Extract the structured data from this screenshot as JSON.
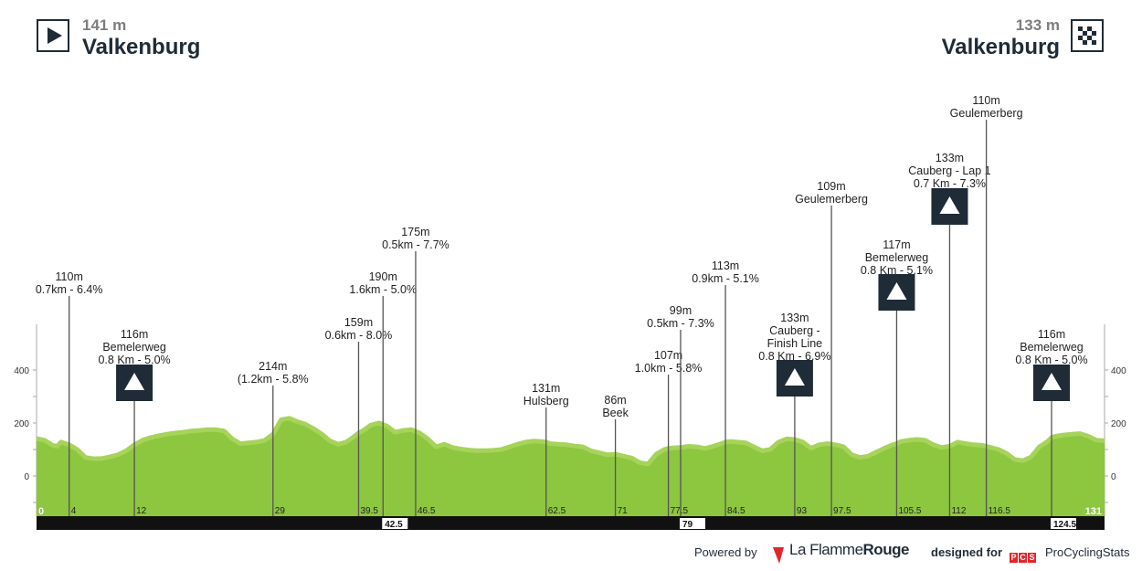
{
  "header": {
    "start": {
      "elevation": "141 m",
      "city": "Valkenburg",
      "icon": "play-start-icon"
    },
    "finish": {
      "elevation": "133 m",
      "city": "Valkenburg",
      "icon": "checkered-flag-icon"
    }
  },
  "chart_data": {
    "type": "area",
    "title": "",
    "xlabel": "",
    "ylabel": "",
    "xlim": [
      0,
      131
    ],
    "ylim": [
      -150,
      400
    ],
    "y_ticks": [
      0,
      200,
      400
    ],
    "grid": false,
    "colors": {
      "fill": "#8dc63f",
      "fill_light": "#a6d35a",
      "axis_bar": "#111111",
      "marker": "#1f2b36"
    },
    "profile": {
      "x": [
        0,
        1,
        2,
        2.5,
        3,
        4,
        5,
        6,
        7,
        8,
        9,
        10,
        11,
        12,
        13,
        14,
        15,
        16,
        17,
        18,
        19,
        20,
        21,
        22,
        23,
        24,
        25,
        26,
        27,
        28,
        29,
        30,
        31,
        32,
        33,
        34,
        35,
        36,
        37,
        38,
        39,
        39.5,
        40,
        41,
        42,
        43,
        44,
        45,
        46,
        46.5,
        47,
        48,
        49,
        50,
        51,
        52,
        53,
        54,
        55,
        56,
        57,
        58,
        59,
        60,
        61,
        62,
        62.5,
        63,
        64,
        65,
        66,
        67,
        68,
        69,
        70,
        71,
        72,
        73,
        74,
        75,
        76,
        77,
        77.5,
        78,
        79,
        80,
        81,
        82,
        83,
        84,
        84.5,
        85,
        86,
        87,
        88,
        89,
        90,
        91,
        92,
        93,
        94,
        95,
        96,
        97,
        97.5,
        98,
        99,
        100,
        101,
        102,
        103,
        104,
        105,
        105.5,
        106,
        107,
        108,
        109,
        110,
        111,
        112,
        113,
        114,
        115,
        116,
        116.5,
        117,
        118,
        119,
        120,
        121,
        122,
        123,
        124,
        124.5,
        125,
        126,
        127,
        128,
        129,
        130,
        131
      ],
      "y": [
        141,
        135,
        115,
        112,
        128,
        118,
        100,
        70,
        65,
        66,
        72,
        80,
        95,
        118,
        135,
        145,
        152,
        158,
        162,
        165,
        170,
        172,
        175,
        175,
        170,
        140,
        122,
        125,
        128,
        135,
        158,
        212,
        218,
        205,
        195,
        178,
        158,
        132,
        120,
        128,
        150,
        162,
        170,
        192,
        200,
        188,
        165,
        172,
        175,
        168,
        162,
        140,
        110,
        120,
        108,
        102,
        98,
        96,
        96,
        97,
        100,
        110,
        120,
        128,
        132,
        130,
        128,
        122,
        120,
        118,
        113,
        110,
        95,
        88,
        80,
        82,
        75,
        68,
        50,
        45,
        82,
        100,
        104,
        106,
        108,
        112,
        110,
        104,
        112,
        122,
        128,
        130,
        128,
        125,
        110,
        95,
        100,
        128,
        140,
        138,
        128,
        105,
        118,
        122,
        120,
        118,
        110,
        80,
        70,
        75,
        90,
        105,
        118,
        122,
        130,
        135,
        138,
        135,
        118,
        108,
        112,
        128,
        122,
        118,
        116,
        112,
        108,
        100,
        85,
        62,
        58,
        72,
        110,
        130,
        145,
        150,
        155,
        158,
        160,
        150,
        135,
        133
      ]
    },
    "km_markers": [
      {
        "km": 4,
        "label": "4",
        "elev": "110m",
        "desc": "0.7km - 6.4%",
        "climb_icon": false
      },
      {
        "km": 12,
        "label": "12",
        "elev": "116m",
        "desc": "Bemelerweg",
        "desc2": "0.8 Km - 5.0%",
        "climb_icon": true
      },
      {
        "km": 29,
        "label": "29",
        "elev": "214m",
        "desc": "(1.2km - 5.8%",
        "climb_icon": false
      },
      {
        "km": 39.5,
        "label": "39.5",
        "elev": "159m",
        "desc": "0.6km - 8.0%",
        "climb_icon": false
      },
      {
        "km": 42.5,
        "label": "42.5",
        "elev": "190m",
        "desc": "1.6km - 5.0%",
        "climb_icon": false
      },
      {
        "km": 46.5,
        "label": "46.5",
        "elev": "175m",
        "desc": "0.5km - 7.7%",
        "climb_icon": false
      },
      {
        "km": 62.5,
        "label": "62.5",
        "elev": "131m",
        "desc": "Hulsberg",
        "climb_icon": false
      },
      {
        "km": 71,
        "label": "71",
        "elev": "86m",
        "desc": "Beek",
        "climb_icon": false
      },
      {
        "km": 77.5,
        "label": "77.5",
        "elev": "107m",
        "desc": "1.0km - 5.8%",
        "climb_icon": false
      },
      {
        "km": 79,
        "label": "79",
        "elev": "99m",
        "desc": "0.5km - 7.3%",
        "climb_icon": false
      },
      {
        "km": 84.5,
        "label": "84.5",
        "elev": "113m",
        "desc": "0.9km - 5.1%",
        "climb_icon": false
      },
      {
        "km": 93,
        "label": "93",
        "elev": "133m",
        "desc": "Cauberg -",
        "desc2": "Finish Line",
        "desc3": "0.8 Km - 6.9%",
        "climb_icon": true
      },
      {
        "km": 97.5,
        "label": "97.5",
        "elev": "109m",
        "desc": "Geulemerberg",
        "climb_icon": false
      },
      {
        "km": 105.5,
        "label": "105.5",
        "elev": "117m",
        "desc": "Bemelerweg",
        "desc2": "0.8 Km - 5.1%",
        "climb_icon": true
      },
      {
        "km": 112,
        "label": "112",
        "elev": "133m",
        "desc": "Cauberg - Lap 1",
        "desc2": "0.7 Km - 7.3%",
        "climb_icon": true
      },
      {
        "km": 116.5,
        "label": "116.5",
        "elev": "110m",
        "desc": "Geulemerberg",
        "climb_icon": false
      },
      {
        "km": 124.5,
        "label": "124.5",
        "elev": "116m",
        "desc": "Bemelerweg",
        "desc2": "0.8 Km - 5.0%",
        "climb_icon": true
      }
    ],
    "axis_labels_highlight": [
      "0",
      "42.5",
      "79",
      "124.5",
      "131"
    ]
  },
  "footer": {
    "powered_by": "Powered by",
    "lfr_brand_a": "La Flamme",
    "lfr_brand_b": "Rouge",
    "designed_for": "designed for",
    "pcs_badge": [
      "P",
      "C",
      "S"
    ],
    "pcs_name": "ProCyclingStats"
  }
}
